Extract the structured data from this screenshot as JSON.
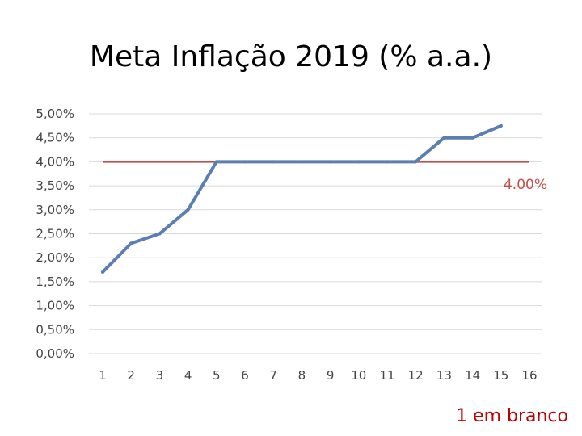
{
  "chart_data": {
    "type": "line",
    "title": "Meta Inflação 2019 (% a.a.)",
    "x": [
      1,
      2,
      3,
      4,
      5,
      6,
      7,
      8,
      9,
      10,
      11,
      12,
      13,
      14,
      15
    ],
    "x_tick_labels": [
      "1",
      "2",
      "3",
      "4",
      "5",
      "6",
      "7",
      "8",
      "9",
      "10",
      "11",
      "12",
      "13",
      "14",
      "15",
      "16"
    ],
    "xlim": [
      1,
      16
    ],
    "ylim": [
      0,
      5
    ],
    "y_tick_values": [
      0,
      0.5,
      1,
      1.5,
      2,
      2.5,
      3,
      3.5,
      4,
      4.5,
      5
    ],
    "y_tick_labels": [
      "0,00%",
      "0,50%",
      "1,00%",
      "1,50%",
      "2,00%",
      "2,50%",
      "3,00%",
      "3,50%",
      "4,00%",
      "4,50%",
      "5,00%"
    ],
    "grid": true,
    "series": [
      {
        "color": "#5b7fb0",
        "values": [
          1.7,
          2.3,
          2.5,
          3.0,
          4.0,
          4.0,
          4.0,
          4.0,
          4.0,
          4.0,
          4.0,
          4.0,
          4.5,
          4.5,
          4.75
        ]
      }
    ],
    "target_line": {
      "value": 4.0,
      "label": "4.00%",
      "color": "#c0504d"
    },
    "annotation": {
      "text": "1 em branco",
      "color": "#c00000"
    }
  }
}
